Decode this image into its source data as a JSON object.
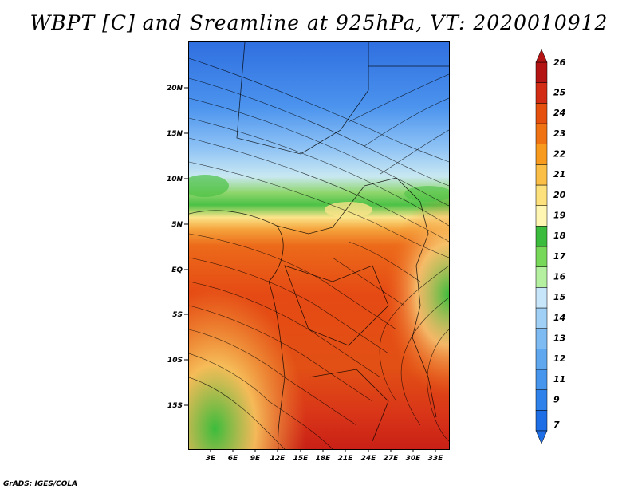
{
  "title": "WBPT [C] and Sreamline at 925hPa, VT: 2020010912",
  "credit": "GrADS: IGES/COLA",
  "lat_labels": [
    "20N",
    "15N",
    "10N",
    "5N",
    "EQ",
    "5S",
    "10S",
    "15S"
  ],
  "lon_labels": [
    "3E",
    "6E",
    "9E",
    "12E",
    "15E",
    "18E",
    "21E",
    "24E",
    "27E",
    "30E",
    "33E"
  ],
  "colorbar": {
    "labels": [
      "7",
      "9",
      "11",
      "12",
      "13",
      "14",
      "15",
      "16",
      "17",
      "18",
      "19",
      "20",
      "21",
      "22",
      "23",
      "24",
      "25",
      "26"
    ],
    "colors": [
      "#1e6ee6",
      "#2f82ea",
      "#4696ee",
      "#5fa8f0",
      "#7ebbf3",
      "#a0d0f6",
      "#c8e6fa",
      "#b4f0a0",
      "#78d85a",
      "#3cbc3c",
      "#fff6b4",
      "#fde17c",
      "#fbbe46",
      "#f89a1e",
      "#ef7312",
      "#e6500f",
      "#d22d14",
      "#b41414"
    ]
  }
}
